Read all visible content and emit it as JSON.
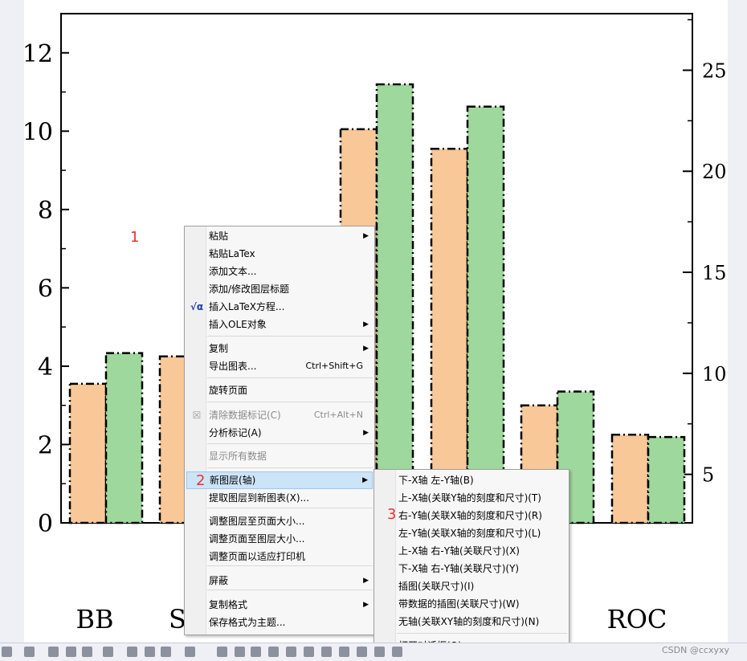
{
  "chart_data": {
    "type": "bar",
    "categories": [
      "BB",
      "S",
      "",
      "",
      "",
      "ROC"
    ],
    "series": [
      {
        "axis": "left",
        "color": "#f9c898",
        "values": [
          3.55,
          4.25,
          10.05,
          9.55,
          3.0,
          2.25
        ]
      },
      {
        "axis": "right",
        "color": "#9ed89c",
        "values": [
          11.0,
          null,
          24.3,
          23.2,
          9.1,
          6.85
        ]
      }
    ],
    "ylim_left": [
      0,
      13
    ],
    "yticks_left": [
      "0",
      "2",
      "4",
      "6",
      "8",
      "10",
      "12"
    ],
    "ylim_right": [
      2.6,
      27.8
    ],
    "yticks_right": [
      "5",
      "10",
      "15",
      "20",
      "25"
    ],
    "bar_border": "dash-dot black",
    "grid": false,
    "legend": "none"
  },
  "annotations": {
    "mark1": "1",
    "mark2": "2",
    "mark3": "3"
  },
  "context_menu": {
    "items": [
      {
        "label": "粘贴",
        "submenu": true
      },
      {
        "label": "粘贴LaTex"
      },
      {
        "label": "添加文本..."
      },
      {
        "label": "添加/修改图层标题"
      },
      {
        "label": "插入LaTeX方程...",
        "icon": "√α"
      },
      {
        "label": "插入OLE对象",
        "submenu": true
      },
      {
        "label": "复制",
        "submenu": true
      },
      {
        "label": "导出图表...",
        "shortcut": "Ctrl+Shift+G"
      },
      {
        "label": "旋转页面"
      },
      {
        "label": "清除数据标记(C)",
        "shortcut": "Ctrl+Alt+N",
        "disabled": true
      },
      {
        "label": "分析标记(A)",
        "submenu": true
      },
      {
        "label": "显示所有数据",
        "disabled": true
      },
      {
        "label": "新图层(轴)",
        "submenu": true,
        "highlight": true
      },
      {
        "label": "提取图层到新图表(X)..."
      },
      {
        "label": "调整图层至页面大小..."
      },
      {
        "label": "调整页面至图层大小..."
      },
      {
        "label": "调整页面以适应打印机"
      },
      {
        "label": "屏蔽",
        "submenu": true
      },
      {
        "label": "复制格式",
        "submenu": true
      },
      {
        "label": "保存格式为主题..."
      }
    ]
  },
  "submenu": {
    "items": [
      {
        "label": "下-X轴 左-Y轴(B)"
      },
      {
        "label": "上-X轴(关联Y轴的刻度和尺寸)(T)"
      },
      {
        "label": "右-Y轴(关联X轴的刻度和尺寸)(R)"
      },
      {
        "label": "左-Y轴(关联X轴的刻度和尺寸)(L)"
      },
      {
        "label": "上-X轴 右-Y轴(关联尺寸)(X)"
      },
      {
        "label": "下-X轴 右-Y轴(关联尺寸)(Y)"
      },
      {
        "label": "插图(关联尺寸)(I)"
      },
      {
        "label": "带数据的插图(关联尺寸)(W)"
      },
      {
        "label": "无轴(关联XY轴的刻度和尺寸)(N)"
      },
      {
        "label": "打开对话框(O)..."
      }
    ]
  },
  "watermark": "CSDN @ccxyxy"
}
